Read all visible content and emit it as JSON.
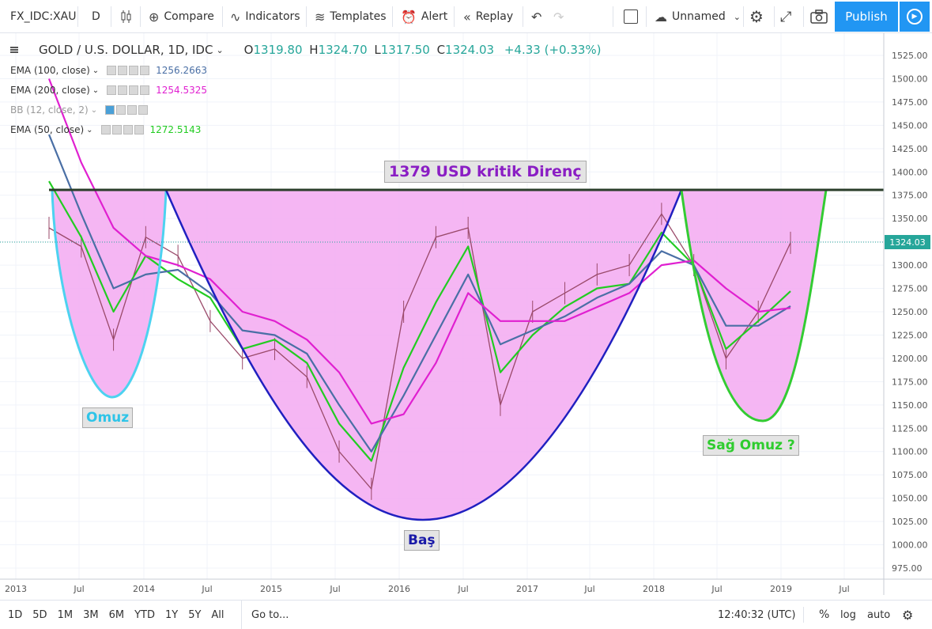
{
  "toolbar": {
    "symbol": "FX_IDC:XAU",
    "interval": "D",
    "compare": "Compare",
    "indicators": "Indicators",
    "templates": "Templates",
    "alert": "Alert",
    "replay": "Replay",
    "layout_name": "Unnamed",
    "publish": "Publish"
  },
  "legend": {
    "title": "GOLD / U.S. DOLLAR, 1D, IDC",
    "open_label": "O",
    "open": "1319.80",
    "high_label": "H",
    "high": "1324.70",
    "low_label": "L",
    "low": "1317.50",
    "close_label": "C",
    "close": "1324.03",
    "change": "+4.33 (+0.33%)",
    "indicators": [
      {
        "name": "EMA (100, close)",
        "value": "1256.2663",
        "color": "#4a6fa5"
      },
      {
        "name": "EMA (200, close)",
        "value": "1254.5325",
        "color": "#e020d0"
      },
      {
        "name": "BB (12, close, 2)",
        "value": "",
        "color": "#9aa"
      },
      {
        "name": "EMA (50, close)",
        "value": "1272.5143",
        "color": "#22cc22"
      }
    ]
  },
  "annotations": {
    "resistance": "1379 USD kritik Direnç",
    "left_shoulder": "Omuz",
    "head": "Baş",
    "right_shoulder": "Sağ Omuz ?"
  },
  "price_axis": {
    "ticks": [
      "1525.00",
      "1500.00",
      "1475.00",
      "1450.00",
      "1425.00",
      "1400.00",
      "1375.00",
      "1350.00",
      "1325.00",
      "1300.00",
      "1275.00",
      "1250.00",
      "1225.00",
      "1200.00",
      "1175.00",
      "1150.00",
      "1125.00",
      "1100.00",
      "1075.00",
      "1050.00",
      "1025.00",
      "1000.00",
      "975.00"
    ],
    "last_price": "1324.03"
  },
  "time_axis": {
    "ticks": [
      "2013",
      "Jul",
      "2014",
      "Jul",
      "2015",
      "Jul",
      "2016",
      "Jul",
      "2017",
      "Jul",
      "2018",
      "Jul",
      "2019",
      "Jul"
    ]
  },
  "bottom": {
    "ranges": [
      "1D",
      "5D",
      "1M",
      "3M",
      "6M",
      "YTD",
      "1Y",
      "5Y",
      "All"
    ],
    "goto": "Go to...",
    "time": "12:40:32 (UTC)",
    "percent": "%",
    "log": "log",
    "auto": "auto"
  },
  "chart_data": {
    "type": "line",
    "title": "GOLD / U.S. DOLLAR, 1D, IDC",
    "y_range": [
      975,
      1525
    ],
    "resistance_level": 1379,
    "last_price": 1324.03,
    "x": [
      "2013-06",
      "2013-09",
      "2013-12",
      "2014-03",
      "2014-06",
      "2014-09",
      "2014-12",
      "2015-03",
      "2015-06",
      "2015-09",
      "2015-12",
      "2016-03",
      "2016-06",
      "2016-09",
      "2016-12",
      "2017-03",
      "2017-06",
      "2017-09",
      "2017-12",
      "2018-03",
      "2018-06",
      "2018-09",
      "2018-12",
      "2019-02"
    ],
    "series": [
      {
        "name": "EMA (50, close)",
        "color": "#22cc22",
        "values": [
          1390,
          1330,
          1250,
          1310,
          1285,
          1265,
          1210,
          1220,
          1195,
          1130,
          1090,
          1190,
          1260,
          1320,
          1185,
          1225,
          1255,
          1275,
          1280,
          1335,
          1300,
          1210,
          1240,
          1272
        ]
      },
      {
        "name": "EMA (100, close)",
        "color": "#4a6fa5",
        "values": [
          1440,
          1355,
          1275,
          1290,
          1295,
          1270,
          1230,
          1225,
          1205,
          1150,
          1100,
          1160,
          1225,
          1290,
          1215,
          1230,
          1245,
          1265,
          1280,
          1315,
          1300,
          1235,
          1235,
          1256
        ]
      },
      {
        "name": "EMA (200, close)",
        "color": "#e020d0",
        "values": [
          1500,
          1410,
          1340,
          1310,
          1300,
          1285,
          1250,
          1240,
          1220,
          1185,
          1130,
          1140,
          1195,
          1270,
          1240,
          1240,
          1240,
          1255,
          1270,
          1300,
          1305,
          1275,
          1250,
          1254
        ]
      }
    ],
    "price_close": [
      1340,
      1320,
      1220,
      1330,
      1310,
      1240,
      1200,
      1210,
      1180,
      1100,
      1060,
      1250,
      1330,
      1340,
      1150,
      1250,
      1270,
      1290,
      1300,
      1355,
      1300,
      1200,
      1250,
      1324
    ]
  }
}
